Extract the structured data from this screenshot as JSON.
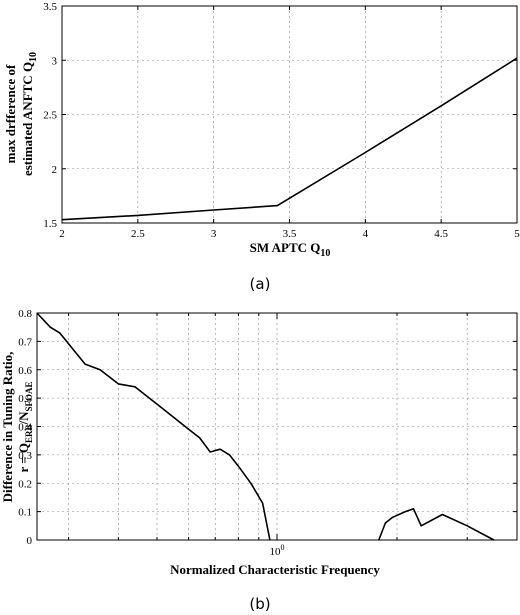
{
  "chart_data": [
    {
      "type": "line",
      "title": "",
      "caption": "(a)",
      "xlabel": {
        "main": "SM APTC Q",
        "sub": "10"
      },
      "ylabel": {
        "line1": "max drfference of",
        "line2_main": "estimated ANFTC Q",
        "line2_sub": "10"
      },
      "xlim": [
        2,
        5
      ],
      "ylim": [
        1.5,
        3.5
      ],
      "xticks": [
        "2",
        "2.5",
        "3",
        "3.5",
        "4",
        "4.5",
        "5"
      ],
      "yticks": [
        "1.5",
        "2",
        "2.5",
        "3",
        "3.5"
      ],
      "grid": true,
      "series": [
        {
          "x": [
            2.0,
            2.5,
            3.0,
            3.42,
            4.0,
            4.5,
            5.0
          ],
          "y": [
            1.53,
            1.57,
            1.62,
            1.66,
            2.15,
            2.58,
            3.02
          ]
        }
      ]
    },
    {
      "type": "line",
      "title": "",
      "caption": "(b)",
      "xscale": "log",
      "xlabel": "Normalized Characteristic Frequency",
      "ylabel": {
        "line1": "Difference in Tuning Ratio,",
        "line2": "r = Q",
        "sub1": "ERB",
        "mid": "/N",
        "sub2": "SFOAE"
      },
      "xlim": [
        0.25,
        4.0
      ],
      "ylim": [
        0,
        0.8
      ],
      "xticks": [
        {
          "value": 1,
          "base": "10",
          "exp": "0"
        }
      ],
      "yticks": [
        "0",
        "0.1",
        "0.2",
        "0.3",
        "0.4",
        "0.5",
        "0.6",
        "0.7",
        "0.8"
      ],
      "grid": true,
      "series": [
        {
          "segments": [
            {
              "x": [
                0.25,
                0.27,
                0.285,
                0.33,
                0.36,
                0.4,
                0.44,
                0.52,
                0.6,
                0.64,
                0.68,
                0.72,
                0.76,
                0.8,
                0.86,
                0.92,
                0.96
              ],
              "y": [
                0.8,
                0.75,
                0.73,
                0.62,
                0.6,
                0.55,
                0.54,
                0.46,
                0.39,
                0.36,
                0.31,
                0.32,
                0.3,
                0.26,
                0.2,
                0.13,
                0.0
              ]
            },
            {
              "x": [
                1.8,
                1.87,
                1.95,
                2.1,
                2.2,
                2.3,
                2.6,
                3.0,
                3.5
              ],
              "y": [
                0.0,
                0.06,
                0.08,
                0.1,
                0.11,
                0.05,
                0.09,
                0.05,
                0.0
              ]
            }
          ]
        }
      ]
    }
  ]
}
